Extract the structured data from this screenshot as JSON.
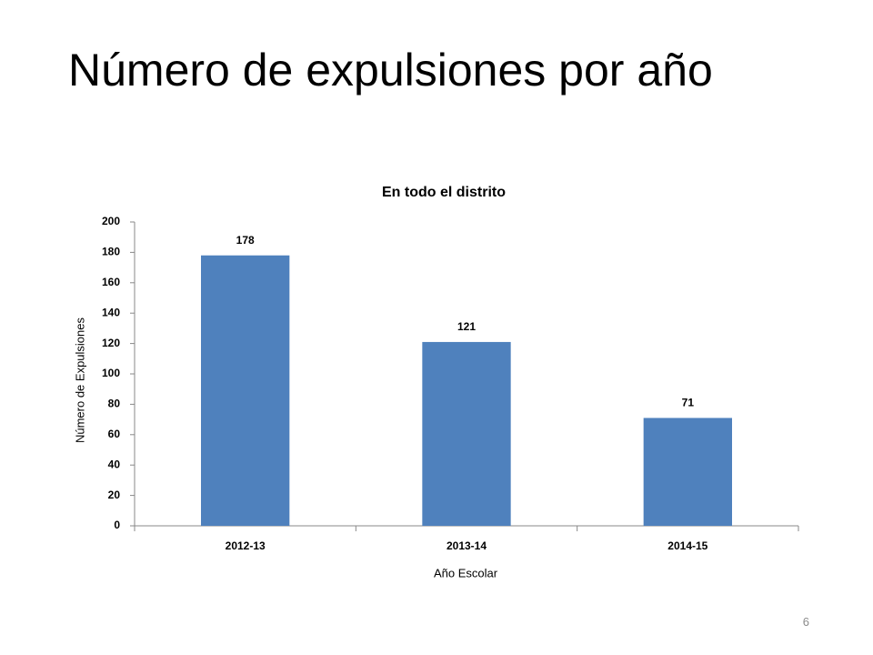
{
  "slide": {
    "title": "Número de expulsiones por año",
    "page_number": 6
  },
  "chart_data": {
    "type": "bar",
    "title": "En todo el distrito",
    "categories": [
      "2012-13",
      "2013-14",
      "2014-15"
    ],
    "values": [
      178,
      121,
      71
    ],
    "color": "#4f81bd",
    "xlabel": "Año Escolar",
    "ylabel": "Número de Expulsiones",
    "ylim": [
      0,
      200
    ],
    "yticks": [
      0,
      20,
      40,
      60,
      80,
      100,
      120,
      140,
      160,
      180,
      200
    ],
    "grid": false,
    "data_labels": true
  }
}
